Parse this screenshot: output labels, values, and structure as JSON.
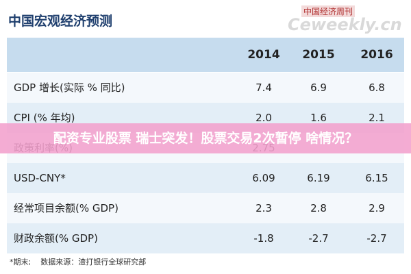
{
  "header": {
    "title": "中国宏观经济预测",
    "logo_top": "中国经济周刊",
    "logo_bottom": "Ceweekly.cn"
  },
  "table": {
    "columns": [
      "2014",
      "2015",
      "2016"
    ],
    "rows": [
      [
        "GDP 增长(实际 % 同比)",
        "7.4",
        "6.9",
        "6.8"
      ],
      [
        "CPI (% 年均)",
        "2.0",
        "1.6",
        "2.1"
      ],
      [
        "政策利率(%)",
        "2.75"
      ],
      [
        "USD-CNY*",
        "6.09",
        "6.19",
        "6.15"
      ],
      [
        "经常项目余额(% GDP)",
        "2.3",
        "2.8",
        "2.9"
      ],
      [
        "财政余额(% GDP)",
        "-1.8",
        "-2.7",
        "-2.7"
      ]
    ]
  },
  "footnote": "*期末;    数据来源：渣打银行全球研究部",
  "banner": "配资专业股票 瑞士突发！股票交易2次暂停 啥情况？"
}
